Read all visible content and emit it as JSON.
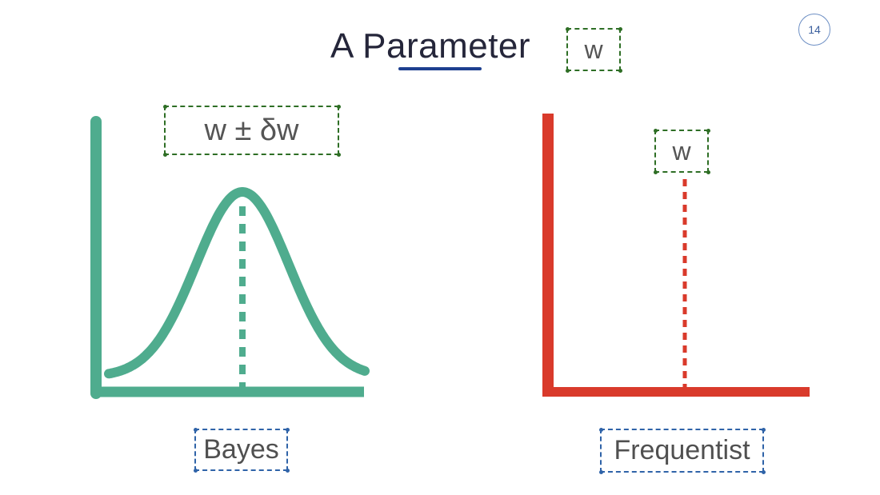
{
  "slide": {
    "title": "A Parameter",
    "page_number": "14",
    "title_symbol": "w"
  },
  "bayes": {
    "formula": "w ± δw",
    "label": "Bayes",
    "color": "#4fac8e"
  },
  "frequentist": {
    "symbol": "w",
    "label": "Frequentist",
    "color": "#d93a2b"
  }
}
